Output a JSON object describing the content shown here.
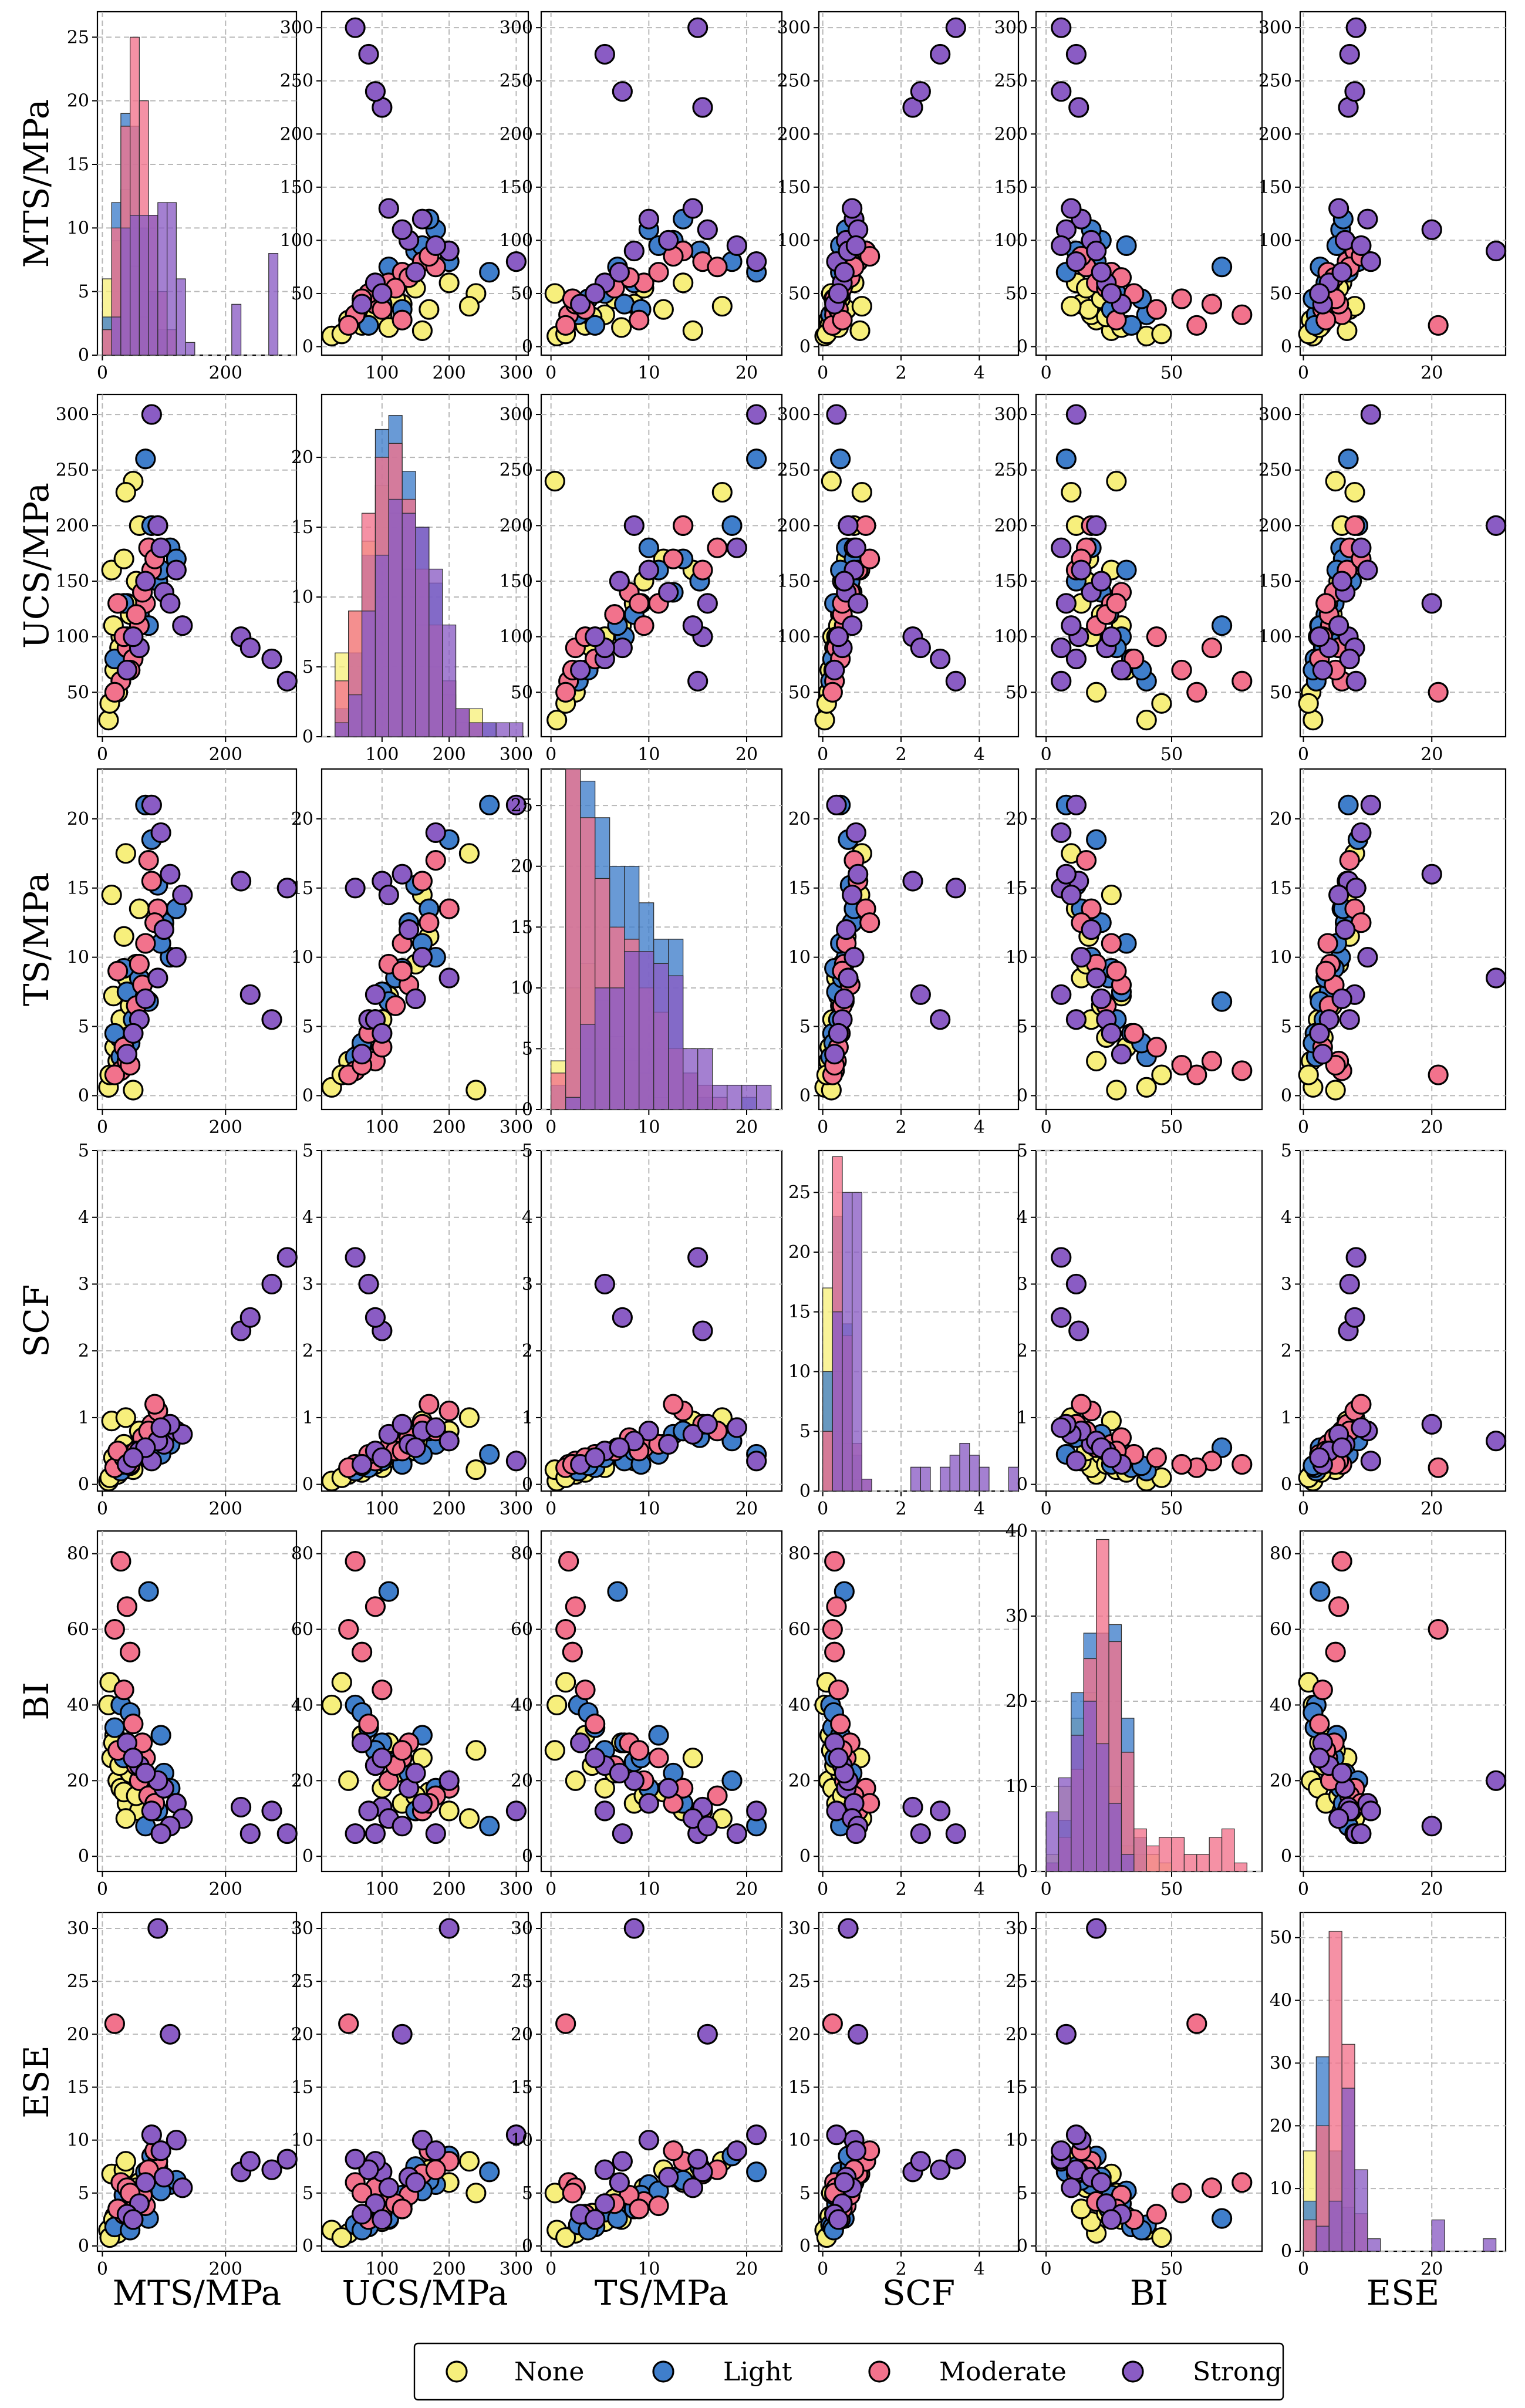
{
  "chart_data": {
    "type": "scatter",
    "layout": "pair-plot",
    "variables": [
      "MTS/MPa",
      "UCS/MPa",
      "TS/MPa",
      "SCF",
      "BI",
      "ESE"
    ],
    "axis_ranges": {
      "MTS/MPa": [
        -8,
        315
      ],
      "UCS/MPa": [
        10,
        318
      ],
      "TS/MPa": [
        -1,
        23.6
      ],
      "SCF": [
        -0.1,
        5.0
      ],
      "BI": [
        -4,
        86
      ],
      "ESE": [
        -0.5,
        31.5
      ]
    },
    "ticks": {
      "MTS/MPa": [
        0,
        200
      ],
      "UCS/MPa": [
        100,
        200,
        300
      ],
      "TS/MPa": [
        0,
        10,
        20
      ],
      "SCF": [
        0,
        2,
        4
      ],
      "BI": [
        0,
        50
      ],
      "ESE": [
        0,
        20
      ]
    },
    "y_ticks": {
      "MTS/MPa": [
        0,
        50,
        100,
        150,
        200,
        250,
        300
      ],
      "UCS/MPa": [
        50,
        100,
        150,
        200,
        250,
        300
      ],
      "TS/MPa": [
        0,
        5,
        10,
        15,
        20
      ],
      "SCF": [
        0,
        1,
        2,
        3,
        4,
        5
      ],
      "BI": [
        0,
        20,
        40,
        60,
        80
      ],
      "ESE": [
        0,
        5,
        10,
        15,
        20,
        25,
        30
      ]
    },
    "hist_ranges": [
      [
        0,
        27
      ],
      [
        0,
        24.5
      ],
      [
        0,
        28
      ],
      [
        0,
        28.5
      ],
      [
        0,
        40
      ],
      [
        0,
        54
      ]
    ],
    "hist_ticks": [
      [
        0,
        5,
        10,
        15,
        20,
        25
      ],
      [
        0,
        5,
        10,
        15,
        20
      ],
      [
        0,
        5,
        10,
        15,
        20,
        25
      ],
      [
        0,
        5,
        10,
        15,
        20,
        25
      ],
      [
        0,
        10,
        20,
        30,
        40
      ],
      [
        0,
        10,
        20,
        30,
        40,
        50
      ]
    ],
    "histograms": [
      {
        "bin_edges": [
          0,
          15,
          30,
          45,
          60,
          75,
          90,
          105,
          120,
          135,
          150,
          165,
          180,
          195,
          210,
          225,
          240,
          255,
          270,
          285,
          300
        ],
        "counts": {
          "None": [
            6,
            9,
            13,
            7,
            3,
            0,
            0,
            0,
            0,
            0,
            0,
            0,
            0,
            0,
            0,
            0,
            0,
            0,
            0,
            0
          ],
          "Light": [
            3,
            12,
            19,
            18,
            10,
            5,
            2,
            0,
            0,
            0,
            0,
            0,
            0,
            0,
            0,
            0,
            0,
            0,
            0,
            0
          ],
          "Moderate": [
            2,
            10,
            18,
            25,
            20,
            11,
            5,
            2,
            0,
            0,
            0,
            0,
            0,
            0,
            0,
            0,
            0,
            0,
            0,
            0
          ],
          "Strong": [
            0,
            3,
            10,
            11,
            11,
            11,
            12,
            12,
            6,
            1,
            0,
            0,
            0,
            0,
            4,
            0,
            0,
            0,
            8,
            0
          ]
        }
      },
      {
        "bin_edges": [
          30,
          50,
          70,
          90,
          110,
          130,
          150,
          170,
          190,
          210,
          230,
          250,
          270,
          290,
          310
        ],
        "counts": {
          "None": [
            6,
            9,
            14,
            18,
            16,
            12,
            8,
            5,
            3,
            1,
            2,
            0,
            0,
            0
          ],
          "Light": [
            2,
            6,
            13,
            22,
            23,
            19,
            15,
            11,
            4,
            2,
            0,
            1,
            0,
            0
          ],
          "Moderate": [
            4,
            9,
            16,
            20,
            21,
            17,
            12,
            8,
            4,
            2,
            1,
            0,
            0,
            0
          ],
          "Strong": [
            1,
            3,
            9,
            13,
            17,
            16,
            15,
            12,
            8,
            2,
            1,
            1,
            1,
            1
          ]
        }
      },
      {
        "bin_edges": [
          0,
          1.5,
          3,
          4.5,
          6,
          7.5,
          9,
          10.5,
          12,
          13.5,
          15,
          16.5,
          18,
          19.5,
          21,
          22.5
        ],
        "counts": {
          "None": [
            4,
            10,
            12,
            9,
            6,
            4,
            3,
            1,
            0,
            0,
            0,
            0,
            0,
            0,
            0
          ],
          "Light": [
            2,
            28,
            27,
            24,
            20,
            20,
            17,
            14,
            14,
            3,
            1,
            0,
            0,
            1,
            0
          ],
          "Moderate": [
            3,
            28,
            24,
            19,
            15,
            14,
            10,
            8,
            5,
            3,
            2,
            1,
            0,
            0,
            0
          ],
          "Strong": [
            0,
            1,
            7,
            10,
            10,
            13,
            13,
            12,
            11,
            5,
            5,
            2,
            2,
            2,
            2
          ]
        }
      },
      {
        "bin_edges": [
          0,
          0.25,
          0.5,
          0.75,
          1.0,
          1.25,
          1.5,
          1.75,
          2.0,
          2.25,
          2.5,
          2.75,
          3.0,
          3.25,
          3.5,
          3.75,
          4.0,
          4.25,
          4.5,
          4.75,
          5.0
        ],
        "counts": {
          "None": [
            17,
            10,
            4,
            1,
            0,
            0,
            0,
            0,
            0,
            0,
            0,
            0,
            0,
            0,
            0,
            0,
            0,
            0,
            0,
            0
          ],
          "Light": [
            10,
            23,
            14,
            3,
            0,
            0,
            0,
            0,
            0,
            0,
            0,
            0,
            0,
            0,
            0,
            0,
            0,
            0,
            0,
            0
          ],
          "Moderate": [
            5,
            28,
            13,
            4,
            1,
            0,
            0,
            0,
            0,
            0,
            0,
            0,
            0,
            0,
            0,
            0,
            0,
            0,
            0,
            0
          ],
          "Strong": [
            0,
            15,
            25,
            25,
            1,
            0,
            0,
            0,
            0,
            2,
            2,
            0,
            2,
            3,
            4,
            3,
            2,
            0,
            0,
            2
          ]
        }
      },
      {
        "bin_edges": [
          0,
          5,
          10,
          15,
          20,
          25,
          30,
          35,
          40,
          45,
          50,
          55,
          60,
          65,
          70,
          75,
          80
        ],
        "counts": {
          "None": [
            2,
            10,
            18,
            21,
            15,
            10,
            3,
            2,
            2,
            1,
            0,
            0,
            0,
            0,
            0,
            0
          ],
          "Light": [
            1,
            6,
            21,
            28,
            28,
            29,
            18,
            4,
            0,
            0,
            0,
            0,
            0,
            0,
            0,
            0
          ],
          "Moderate": [
            1,
            4,
            12,
            25,
            39,
            27,
            14,
            5,
            3,
            4,
            4,
            2,
            2,
            4,
            5,
            1
          ],
          "Strong": [
            7,
            11,
            16,
            20,
            15,
            8,
            2,
            0,
            0,
            0,
            0,
            0,
            0,
            0,
            0,
            0
          ]
        }
      },
      {
        "bin_edges": [
          0,
          2,
          4,
          6,
          8,
          10,
          12,
          14,
          16,
          18,
          20,
          22,
          24,
          26,
          28,
          30,
          32
        ],
        "counts": {
          "None": [
            16,
            20,
            8,
            3,
            0,
            0,
            0,
            0,
            0,
            0,
            0,
            0,
            0,
            0,
            0,
            0
          ],
          "Light": [
            8,
            31,
            16,
            7,
            0,
            0,
            0,
            0,
            0,
            0,
            0,
            0,
            0,
            0,
            0,
            0
          ],
          "Moderate": [
            5,
            20,
            51,
            33,
            6,
            0,
            0,
            0,
            0,
            0,
            0,
            0,
            0,
            0,
            0,
            0
          ],
          "Strong": [
            0,
            4,
            8,
            26,
            13,
            2,
            0,
            0,
            0,
            0,
            5,
            0,
            0,
            0,
            2,
            0
          ]
        }
      }
    ],
    "series": [
      {
        "name": "None",
        "color": "#f7ef7c",
        "points": [
          [
            25,
            50,
            2.5,
            0.15,
            20,
            1.2
          ],
          [
            30,
            100,
            5.5,
            0.25,
            18,
            2.3
          ],
          [
            15,
            160,
            14.5,
            0.95,
            26,
            6.8
          ],
          [
            40,
            130,
            8.5,
            0.35,
            14,
            3.5
          ],
          [
            10,
            25,
            0.6,
            0.05,
            40,
            1.5
          ],
          [
            50,
            240,
            0.4,
            0.22,
            28,
            5.0
          ],
          [
            35,
            170,
            11.5,
            0.6,
            17,
            7.2
          ],
          [
            20,
            70,
            3.5,
            0.18,
            32,
            2.8
          ],
          [
            45,
            120,
            6.5,
            0.45,
            22,
            4.5
          ],
          [
            60,
            200,
            13.5,
            0.8,
            12,
            6.0
          ],
          [
            12,
            40,
            1.5,
            0.1,
            46,
            0.8
          ],
          [
            28,
            90,
            4.2,
            0.3,
            24,
            3.1
          ],
          [
            55,
            150,
            9.5,
            0.5,
            16,
            5.5
          ],
          [
            18,
            110,
            7.2,
            0.4,
            30,
            2.5
          ],
          [
            38,
            230,
            17.5,
            1.0,
            10,
            8.0
          ]
        ]
      },
      {
        "name": "Light",
        "color": "#3f7ecb",
        "points": [
          [
            100,
            140,
            12.5,
            0.75,
            22,
            6.5
          ],
          [
            40,
            100,
            7.5,
            0.35,
            30,
            4.0
          ],
          [
            70,
            260,
            21.0,
            0.45,
            8,
            7.0
          ],
          [
            110,
            180,
            10.0,
            0.6,
            18,
            5.8
          ],
          [
            30,
            60,
            2.8,
            0.2,
            40,
            2.0
          ],
          [
            60,
            120,
            8.5,
            0.5,
            25,
            3.5
          ],
          [
            90,
            150,
            15.2,
            0.7,
            12,
            7.5
          ],
          [
            20,
            80,
            4.5,
            0.25,
            34,
            1.8
          ],
          [
            80,
            200,
            18.5,
            0.65,
            20,
            8.5
          ],
          [
            50,
            90,
            5.5,
            0.4,
            28,
            3.2
          ],
          [
            120,
            170,
            13.5,
            0.8,
            14,
            6.2
          ],
          [
            35,
            130,
            9.2,
            0.3,
            26,
            4.8
          ],
          [
            75,
            110,
            6.8,
            0.55,
            70,
            2.6
          ],
          [
            95,
            160,
            11.0,
            0.45,
            32,
            5.2
          ],
          [
            45,
            70,
            3.8,
            0.28,
            38,
            1.5
          ]
        ]
      },
      {
        "name": "Moderate",
        "color": "#f2728c",
        "points": [
          [
            60,
            110,
            9.5,
            0.55,
            20,
            4.2
          ],
          [
            80,
            160,
            15.5,
            0.9,
            12,
            6.8
          ],
          [
            30,
            60,
            1.8,
            0.3,
            78,
            6.0
          ],
          [
            40,
            90,
            2.5,
            0.35,
            66,
            5.5
          ],
          [
            70,
            130,
            11.0,
            0.6,
            26,
            3.8
          ],
          [
            50,
            80,
            4.5,
            0.45,
            35,
            2.5
          ],
          [
            90,
            200,
            13.5,
            1.1,
            18,
            8.0
          ],
          [
            20,
            50,
            1.5,
            0.25,
            60,
            21.0
          ],
          [
            65,
            140,
            8.0,
            0.7,
            30,
            4.8
          ],
          [
            35,
            100,
            3.5,
            0.4,
            44,
            3.0
          ],
          [
            75,
            180,
            17.0,
            0.8,
            16,
            7.2
          ],
          [
            55,
            120,
            6.5,
            0.5,
            24,
            4.0
          ],
          [
            85,
            170,
            12.5,
            1.2,
            14,
            9.0
          ],
          [
            45,
            70,
            2.2,
            0.3,
            54,
            5.0
          ],
          [
            25,
            130,
            9.0,
            0.5,
            28,
            3.5
          ]
        ]
      },
      {
        "name": "Strong",
        "color": "#8a5cc4",
        "points": [
          [
            225,
            100,
            15.5,
            2.3,
            13,
            7.0
          ],
          [
            240,
            90,
            7.3,
            2.5,
            6,
            8.0
          ],
          [
            275,
            80,
            5.5,
            3.0,
            12,
            7.2
          ],
          [
            300,
            60,
            15.0,
            3.4,
            6,
            8.2
          ],
          [
            100,
            140,
            12.0,
            0.6,
            18,
            6.5
          ],
          [
            60,
            90,
            5.5,
            0.5,
            24,
            4.0
          ],
          [
            120,
            160,
            10.0,
            0.8,
            14,
            10.0
          ],
          [
            80,
            300,
            21.0,
            0.35,
            12,
            10.5
          ],
          [
            40,
            70,
            3.0,
            0.3,
            30,
            3.0
          ],
          [
            130,
            110,
            14.5,
            0.75,
            10,
            5.5
          ],
          [
            90,
            200,
            8.5,
            0.65,
            20,
            30.0
          ],
          [
            110,
            130,
            16.0,
            0.9,
            8,
            20.0
          ],
          [
            70,
            150,
            7.0,
            0.55,
            22,
            6.0
          ],
          [
            50,
            100,
            4.5,
            0.4,
            26,
            2.5
          ],
          [
            95,
            180,
            19.0,
            0.85,
            6,
            9.0
          ]
        ]
      }
    ]
  },
  "legend": {
    "entries": [
      {
        "label": "None",
        "color": "#f7ef7c"
      },
      {
        "label": "Light",
        "color": "#3f7ecb"
      },
      {
        "label": "Moderate",
        "color": "#f2728c"
      },
      {
        "label": "Strong",
        "color": "#8a5cc4"
      }
    ]
  }
}
